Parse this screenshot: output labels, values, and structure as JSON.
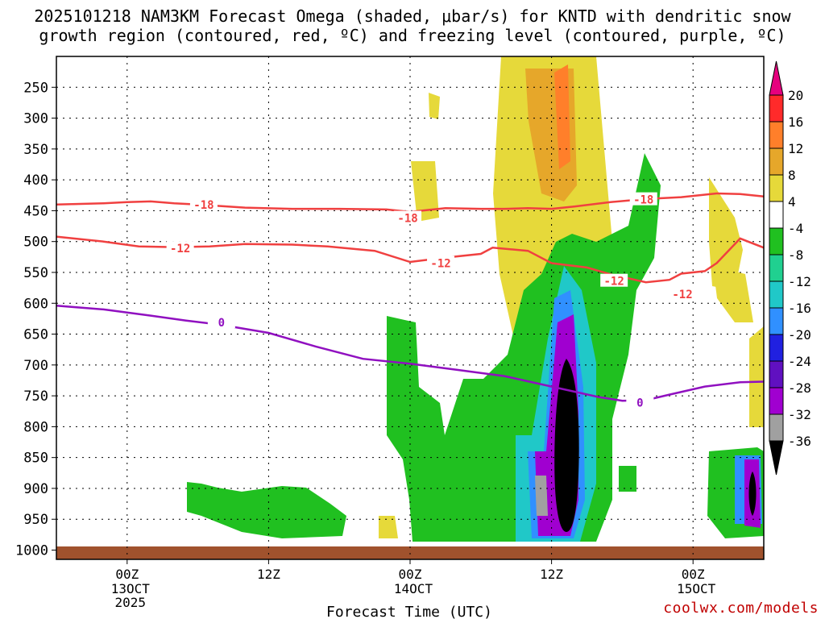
{
  "title": {
    "line1": "2025101218 NAM3KM Forecast Omega (shaded, μbar/s) for KNTD with dendritic snow",
    "line2": "growth region (contoured, red, ºC) and freezing level (contoured, purple, ºC)"
  },
  "credit": "coolwx.com/models",
  "chart_data": {
    "type": "heatmap",
    "xlabel": "Forecast Time (UTC)",
    "x_ticks": [
      {
        "label": "00Z",
        "sub": [
          "13OCT",
          "2025"
        ],
        "hours": 6
      },
      {
        "label": "12Z",
        "sub": [],
        "hours": 18
      },
      {
        "label": "00Z",
        "sub": [
          "14OCT"
        ],
        "hours": 30
      },
      {
        "label": "12Z",
        "sub": [],
        "hours": 42
      },
      {
        "label": "00Z",
        "sub": [
          "15OCT"
        ],
        "hours": 54
      }
    ],
    "x_range_hours": [
      0,
      60
    ],
    "y_ticks": [
      250,
      300,
      350,
      400,
      450,
      500,
      550,
      600,
      650,
      700,
      750,
      800,
      850,
      900,
      950,
      1000
    ],
    "y_range_hpa": [
      200,
      1015
    ],
    "colorbar": {
      "labels": [
        "20",
        "16",
        "12",
        "8",
        "4",
        "-4",
        "-8",
        "-12",
        "-16",
        "-20",
        "-24",
        "-28",
        "-32",
        "-36"
      ],
      "colors": [
        "#e6007e",
        "#ff2a2a",
        "#ff7f2a",
        "#e6a72a",
        "#e6d93a",
        "#ffffff",
        "#20c020",
        "#20d090",
        "#20c8c8",
        "#3090ff",
        "#2020e0",
        "#6010c0",
        "#a000d0",
        "#a0a0a0",
        "#000000"
      ]
    },
    "contours": [
      {
        "color": "#f04040",
        "label": "-18",
        "points": [
          [
            0,
            440
          ],
          [
            4,
            438
          ],
          [
            6,
            436
          ],
          [
            8,
            435
          ],
          [
            10,
            438
          ],
          [
            12,
            440
          ],
          [
            16,
            445
          ],
          [
            20,
            447
          ],
          [
            24,
            447
          ],
          [
            28,
            448
          ],
          [
            30,
            452
          ],
          [
            33,
            446
          ],
          [
            36,
            447
          ],
          [
            38,
            447
          ],
          [
            40,
            446
          ],
          [
            42,
            447
          ],
          [
            44,
            443
          ],
          [
            47,
            436
          ],
          [
            50,
            431
          ],
          [
            53,
            428
          ],
          [
            56,
            422
          ],
          [
            58,
            423
          ],
          [
            60,
            427
          ]
        ],
        "labels_at": [
          [
            12.5,
            440
          ],
          [
            29.8,
            462
          ],
          [
            49.8,
            432
          ]
        ]
      },
      {
        "color": "#f04040",
        "label": "-12",
        "points": [
          [
            0,
            492
          ],
          [
            4,
            500
          ],
          [
            7,
            508
          ],
          [
            10,
            509
          ],
          [
            13,
            508
          ],
          [
            16,
            504
          ],
          [
            20,
            505
          ],
          [
            23,
            508
          ],
          [
            27,
            515
          ],
          [
            30,
            533
          ],
          [
            33,
            526
          ],
          [
            36,
            520
          ],
          [
            37,
            510
          ],
          [
            40,
            515
          ],
          [
            42,
            535
          ],
          [
            45,
            542
          ],
          [
            47,
            553
          ],
          [
            50,
            566
          ],
          [
            52,
            562
          ],
          [
            53,
            552
          ],
          [
            55,
            548
          ],
          [
            56,
            535
          ],
          [
            58,
            495
          ],
          [
            60,
            510
          ]
        ],
        "labels_at": [
          [
            10.5,
            511
          ],
          [
            32.6,
            535
          ],
          [
            47.3,
            564
          ],
          [
            53.1,
            585
          ]
        ]
      },
      {
        "color": "#9010c0",
        "label": "0",
        "points": [
          [
            0,
            604
          ],
          [
            4,
            610
          ],
          [
            8,
            620
          ],
          [
            11,
            628
          ],
          [
            14,
            635
          ],
          [
            18,
            648
          ],
          [
            22,
            670
          ],
          [
            26,
            690
          ],
          [
            30,
            698
          ],
          [
            34,
            708
          ],
          [
            38,
            718
          ],
          [
            42,
            735
          ],
          [
            46,
            752
          ],
          [
            48,
            758
          ],
          [
            50,
            757
          ],
          [
            52,
            748
          ],
          [
            55,
            735
          ],
          [
            58,
            728
          ],
          [
            60,
            727
          ]
        ],
        "labels_at": [
          [
            14,
            631
          ],
          [
            49.5,
            761
          ]
        ]
      }
    ]
  }
}
